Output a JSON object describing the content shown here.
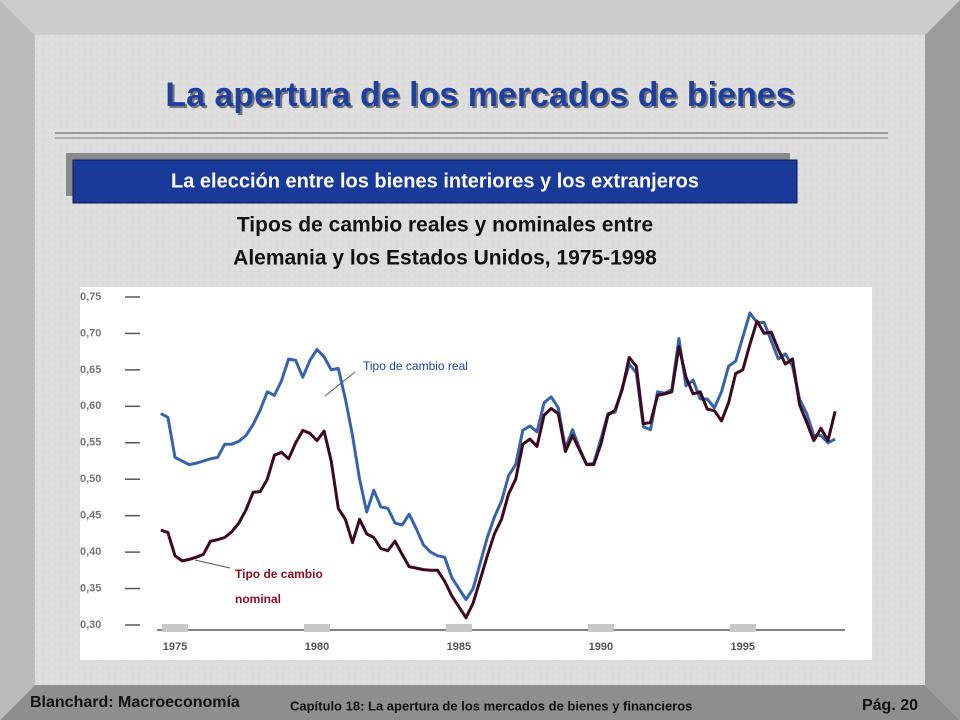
{
  "header": {
    "title": "La apertura de los mercados de bienes",
    "subtitle": "La elección entre los bienes interiores y los extranjeros"
  },
  "chart_data": {
    "type": "line",
    "title": [
      "Tipos de cambio reales y nominales entre",
      "Alemania y los Estados Unidos, 1975-1998"
    ],
    "x": [
      1974.5,
      1974.75,
      1975,
      1975.25,
      1975.5,
      1975.75,
      1976,
      1976.25,
      1976.5,
      1976.75,
      1977,
      1977.25,
      1977.5,
      1977.75,
      1978,
      1978.25,
      1978.5,
      1978.75,
      1979,
      1979.25,
      1979.5,
      1979.75,
      1980,
      1980.25,
      1980.5,
      1980.75,
      1981,
      1981.25,
      1981.5,
      1981.75,
      1982,
      1982.25,
      1982.5,
      1982.75,
      1983,
      1983.25,
      1983.5,
      1983.75,
      1984,
      1984.25,
      1984.5,
      1984.75,
      1985,
      1985.25,
      1985.5,
      1985.75,
      1986,
      1986.25,
      1986.5,
      1986.75,
      1987,
      1987.25,
      1987.5,
      1987.75,
      1988,
      1988.25,
      1988.5,
      1988.75,
      1989,
      1989.25,
      1989.5,
      1989.75,
      1990,
      1990.25,
      1990.5,
      1990.75,
      1991,
      1991.25,
      1991.5,
      1991.75,
      1992,
      1992.25,
      1992.5,
      1992.75,
      1993,
      1993.25,
      1993.5,
      1993.75,
      1994,
      1994.25,
      1994.5,
      1994.75,
      1995,
      1995.25,
      1995.5,
      1995.75,
      1996,
      1996.25,
      1996.5,
      1996.75,
      1997,
      1997.25,
      1997.5,
      1997.75,
      1998,
      1998.25
    ],
    "series": [
      {
        "color": "#3a62a8",
        "values": [
          0.59,
          0.585,
          0.53,
          0.525,
          0.52,
          0.522,
          0.525,
          0.528,
          0.53,
          0.548,
          0.548,
          0.552,
          0.56,
          0.575,
          0.595,
          0.62,
          0.615,
          0.635,
          0.665,
          0.663,
          0.64,
          0.663,
          0.678,
          0.668,
          0.65,
          0.652,
          0.61,
          0.56,
          0.5,
          0.455,
          0.485,
          0.462,
          0.46,
          0.44,
          0.437,
          0.452,
          0.432,
          0.41,
          0.4,
          0.395,
          0.393,
          0.365,
          0.35,
          0.335,
          0.35,
          0.385,
          0.42,
          0.448,
          0.47,
          0.505,
          0.52,
          0.567,
          0.573,
          0.565,
          0.605,
          0.613,
          0.598,
          0.542,
          0.568,
          0.542,
          0.52,
          0.522,
          0.555,
          0.59,
          0.592,
          0.625,
          0.658,
          0.646,
          0.572,
          0.568,
          0.62,
          0.618,
          0.623,
          0.693,
          0.628,
          0.636,
          0.61,
          0.61,
          0.598,
          0.62,
          0.655,
          0.662,
          0.695,
          0.728,
          0.715,
          0.715,
          0.69,
          0.665,
          0.672,
          0.655,
          0.61,
          0.59,
          0.56,
          0.56,
          0.55,
          0.555
        ]
      },
      {
        "color": "#3a0a1e",
        "values": [
          0.43,
          0.427,
          0.395,
          0.388,
          0.39,
          0.393,
          0.397,
          0.415,
          0.417,
          0.42,
          0.428,
          0.44,
          0.458,
          0.482,
          0.483,
          0.5,
          0.533,
          0.537,
          0.528,
          0.55,
          0.567,
          0.563,
          0.553,
          0.566,
          0.525,
          0.46,
          0.445,
          0.413,
          0.445,
          0.425,
          0.42,
          0.405,
          0.402,
          0.415,
          0.397,
          0.38,
          0.378,
          0.376,
          0.375,
          0.375,
          0.36,
          0.34,
          0.325,
          0.31,
          0.33,
          0.362,
          0.395,
          0.425,
          0.445,
          0.48,
          0.5,
          0.548,
          0.555,
          0.545,
          0.588,
          0.597,
          0.59,
          0.538,
          0.56,
          0.54,
          0.52,
          0.52,
          0.548,
          0.588,
          0.595,
          0.623,
          0.667,
          0.655,
          0.576,
          0.578,
          0.615,
          0.617,
          0.62,
          0.682,
          0.64,
          0.617,
          0.62,
          0.596,
          0.594,
          0.58,
          0.605,
          0.645,
          0.65,
          0.685,
          0.717,
          0.7,
          0.702,
          0.678,
          0.658,
          0.665,
          0.602,
          0.578,
          0.553,
          0.57,
          0.553,
          0.593
        ]
      }
    ],
    "annotations": [
      "Tipo de cambio real",
      "Tipo de cambio",
      "nominal"
    ],
    "xlim": [
      1974.4,
      1998.6
    ],
    "xticks": [
      1975,
      1980,
      1985,
      1990,
      1995
    ],
    "ylim": [
      0.3,
      0.75
    ],
    "yticks": [
      {
        "value": 0.75,
        "label": "0,75"
      },
      {
        "value": 0.7,
        "label": "0,70"
      },
      {
        "value": 0.65,
        "label": "0,65"
      },
      {
        "value": 0.6,
        "label": "0,60"
      },
      {
        "value": 0.55,
        "label": "0,55"
      },
      {
        "value": 0.5,
        "label": "0,50"
      },
      {
        "value": 0.45,
        "label": "0,45"
      },
      {
        "value": 0.4,
        "label": "0,40"
      },
      {
        "value": 0.35,
        "label": "0,35"
      },
      {
        "value": 0.3,
        "label": "0,30"
      }
    ],
    "grid": false
  },
  "footer": {
    "left": "Blanchard: Macroeconomía",
    "center": "Capítulo 18:  La apertura de los mercados de bienes y financieros",
    "page": "Pág. 20"
  }
}
